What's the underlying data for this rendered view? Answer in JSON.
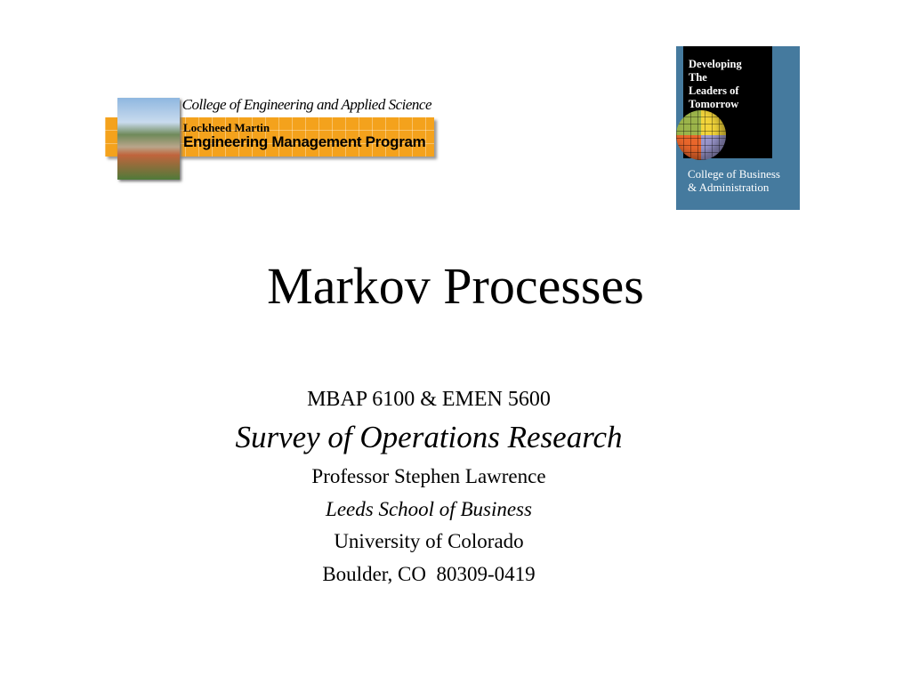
{
  "logos": {
    "engineering": {
      "top_text": "College of Engineering and Applied Science",
      "line1": "Lockheed Martin",
      "line2": "Engineering Management Program",
      "color": "#f4a21c"
    },
    "business": {
      "tagline": [
        "Developing",
        "The",
        "Leaders of",
        "Tomorrow"
      ],
      "name": [
        "College of Business",
        "& Administration"
      ],
      "color": "#457a9e"
    }
  },
  "slide": {
    "title": "Markov Processes",
    "course": "MBAP 6100 & EMEN 5600",
    "course_title": "Survey of Operations Research",
    "professor": "Professor Stephen Lawrence",
    "school": "Leeds School of Business",
    "university": "University of Colorado",
    "address": "Boulder, CO  80309-0419"
  }
}
